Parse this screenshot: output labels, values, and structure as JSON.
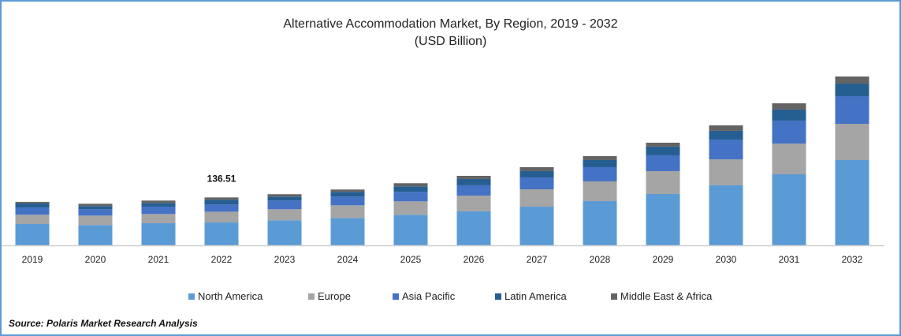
{
  "chart_data": {
    "type": "bar",
    "stacked": true,
    "title": "Alternative Accommodation Market, By Region, 2019 - 2032",
    "subtitle": "(USD Billion)",
    "xlabel": "",
    "ylabel": "",
    "ylim": [
      0,
      500
    ],
    "grid": false,
    "legend_position": "bottom",
    "categories": [
      "2019",
      "2020",
      "2021",
      "2022",
      "2023",
      "2024",
      "2025",
      "2026",
      "2027",
      "2028",
      "2029",
      "2030",
      "2031",
      "2032"
    ],
    "series": [
      {
        "name": "North America",
        "color": "#5b9bd5",
        "values": [
          60.8,
          57.8,
          63.0,
          65.1,
          71.3,
          78.0,
          87.0,
          96.8,
          110.3,
          126.0,
          146.3,
          171.0,
          202.5,
          243.0
        ]
      },
      {
        "name": "Europe",
        "color": "#a5a5a5",
        "values": [
          26.3,
          27.0,
          26.3,
          30.8,
          31.5,
          36.0,
          38.3,
          45.0,
          49.5,
          56.3,
          65.3,
          74.3,
          87.8,
          103.5
        ]
      },
      {
        "name": "Asia Pacific",
        "color": "#4472c4",
        "values": [
          21.0,
          18.0,
          21.0,
          20.3,
          24.8,
          24.8,
          27.0,
          29.3,
          33.8,
          40.5,
          45.0,
          56.3,
          65.3,
          78.8
        ]
      },
      {
        "name": "Latin America",
        "color": "#255e91",
        "values": [
          11.3,
          9.0,
          10.5,
          13.5,
          11.3,
          13.5,
          15.8,
          18.0,
          18.0,
          20.3,
          24.8,
          24.8,
          31.5,
          36.0
        ]
      },
      {
        "name": "Middle East & Africa",
        "color": "#636363",
        "values": [
          4.5,
          6.8,
          6.8,
          6.8,
          6.8,
          6.8,
          9.0,
          9.0,
          11.3,
          11.3,
          11.3,
          15.8,
          18.0,
          20.3
        ]
      }
    ],
    "annotations": [
      {
        "category": "2022",
        "text": "136.51"
      }
    ]
  },
  "source": "Source: Polaris  Market Research Analysis"
}
